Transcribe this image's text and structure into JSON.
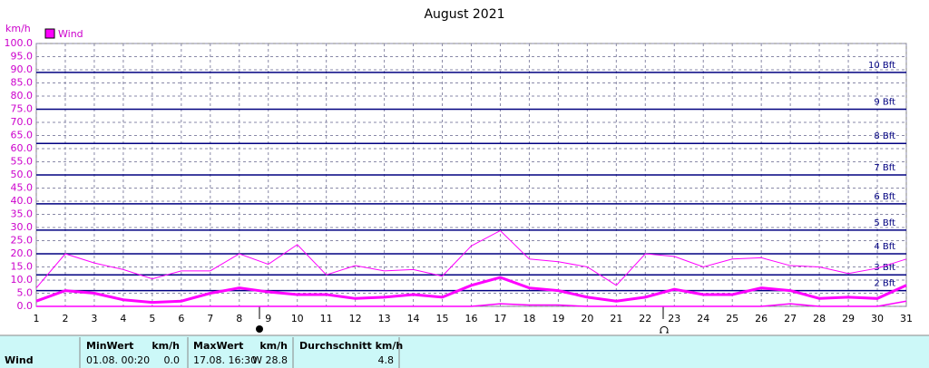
{
  "chart_data": {
    "type": "line",
    "title": "August 2021",
    "y_label": "km/h",
    "x": [
      1,
      2,
      3,
      4,
      5,
      6,
      7,
      8,
      9,
      10,
      11,
      12,
      13,
      14,
      15,
      16,
      17,
      18,
      19,
      20,
      21,
      22,
      23,
      24,
      25,
      26,
      27,
      28,
      29,
      30,
      31
    ],
    "xlim": [
      1,
      31
    ],
    "xticks": [
      1,
      2,
      3,
      4,
      5,
      6,
      7,
      8,
      9,
      10,
      11,
      12,
      13,
      14,
      15,
      16,
      17,
      18,
      19,
      20,
      21,
      22,
      23,
      24,
      25,
      26,
      27,
      28,
      29,
      30,
      31
    ],
    "ylim": [
      0,
      100
    ],
    "yticks": [
      {
        "value": 0,
        "label": "0.0"
      },
      {
        "value": 5,
        "label": "5.0"
      },
      {
        "value": 10,
        "label": "10.0"
      },
      {
        "value": 15,
        "label": "15.0"
      },
      {
        "value": 20,
        "label": "20.0"
      },
      {
        "value": 25,
        "label": "25.0"
      },
      {
        "value": 30,
        "label": "30.0"
      },
      {
        "value": 35,
        "label": "35.0"
      },
      {
        "value": 40,
        "label": "40.0"
      },
      {
        "value": 45,
        "label": "45.0"
      },
      {
        "value": 50,
        "label": "50.0"
      },
      {
        "value": 55,
        "label": "55.0"
      },
      {
        "value": 60,
        "label": "60.0"
      },
      {
        "value": 65,
        "label": "65.0"
      },
      {
        "value": 70,
        "label": "70.0"
      },
      {
        "value": 75,
        "label": "75.0"
      },
      {
        "value": 80,
        "label": "80.0"
      },
      {
        "value": 85,
        "label": "85.0"
      },
      {
        "value": 90,
        "label": "90.0"
      },
      {
        "value": 95,
        "label": "95.0"
      },
      {
        "value": 100,
        "label": "100.0"
      }
    ],
    "grid": true,
    "bft_lines": [
      {
        "value": 6,
        "label": "2 Bft"
      },
      {
        "value": 12,
        "label": "3 Bft"
      },
      {
        "value": 20,
        "label": "4 Bft"
      },
      {
        "value": 29,
        "label": "5 Bft"
      },
      {
        "value": 39,
        "label": "6 Bft"
      },
      {
        "value": 50,
        "label": "7 Bft"
      },
      {
        "value": 62,
        "label": "8 Bft"
      },
      {
        "value": 75,
        "label": "9 Bft"
      },
      {
        "value": 89,
        "label": "10 Bft"
      }
    ],
    "bft_color": "#000080",
    "series": [
      {
        "name": "Wind",
        "color": "#ff00ff",
        "values": [
          2,
          6,
          5,
          2.5,
          1.5,
          2,
          5,
          7,
          5.5,
          4.5,
          4.5,
          3,
          3.5,
          4.5,
          3.5,
          8,
          11,
          7,
          6,
          3.5,
          2,
          3.5,
          6.5,
          4.5,
          4.5,
          7,
          6,
          3,
          3.5,
          3,
          8
        ],
        "max": [
          7,
          20,
          16.5,
          14,
          10.5,
          13.5,
          13.5,
          20,
          16,
          23.5,
          12,
          15.5,
          13.5,
          14,
          11.5,
          23,
          28.8,
          18,
          17,
          15,
          8,
          20,
          19,
          15,
          18,
          18.5,
          15.5,
          15,
          12.5,
          14.5,
          18
        ],
        "min": [
          0,
          0,
          0,
          0,
          0,
          0,
          0,
          0,
          0,
          0,
          0,
          0,
          0,
          0,
          0,
          0,
          1,
          0.5,
          0.5,
          0,
          0,
          0,
          0,
          0,
          0,
          0,
          1,
          0,
          0,
          0,
          2
        ]
      }
    ]
  },
  "table": {
    "row_label": "Wind",
    "headers": [
      "MinWert",
      "km/h",
      "MaxWert",
      "km/h",
      "Durchschnitt km/h"
    ],
    "values": [
      "01.08.  00:20",
      "0.0",
      "17.08.  16:30",
      "W 28.8",
      "4.8"
    ]
  }
}
